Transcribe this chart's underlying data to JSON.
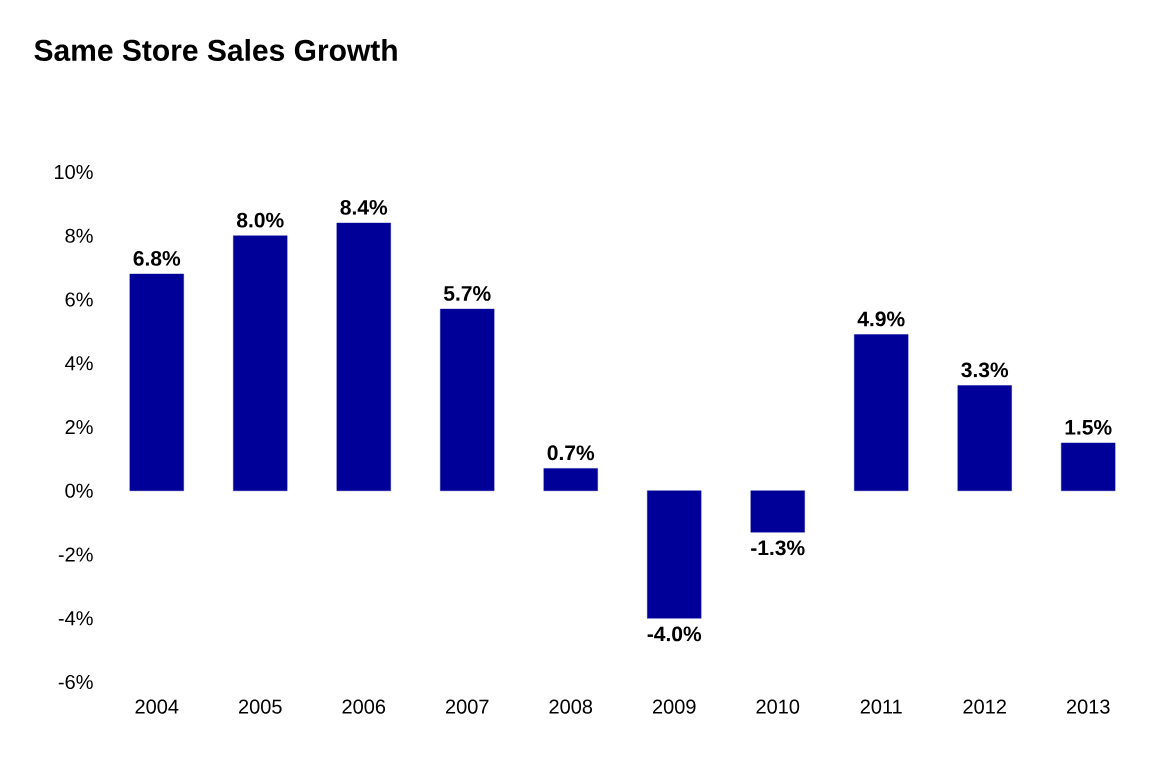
{
  "chart_data": {
    "type": "bar",
    "title": "Same Store Sales Growth",
    "categories": [
      "2004",
      "2005",
      "2006",
      "2007",
      "2008",
      "2009",
      "2010",
      "2011",
      "2012",
      "2013"
    ],
    "values": [
      6.8,
      8.0,
      8.4,
      5.7,
      0.7,
      -4.0,
      -1.3,
      4.9,
      3.3,
      1.5
    ],
    "value_labels": [
      "6.8%",
      "8.0%",
      "8.4%",
      "5.7%",
      "0.7%",
      "-4.0%",
      "-1.3%",
      "4.9%",
      "3.3%",
      "1.5%"
    ],
    "color": "#000099",
    "ylim": [
      -6,
      10
    ],
    "yticks": [
      {
        "value": -6,
        "label": "-6%"
      },
      {
        "value": -4,
        "label": "-4%"
      },
      {
        "value": -2,
        "label": "-2%"
      },
      {
        "value": 0,
        "label": "0%"
      },
      {
        "value": 2,
        "label": "2%"
      },
      {
        "value": 4,
        "label": "4%"
      },
      {
        "value": 6,
        "label": "6%"
      },
      {
        "value": 8,
        "label": "8%"
      },
      {
        "value": 10,
        "label": "10%"
      }
    ]
  }
}
